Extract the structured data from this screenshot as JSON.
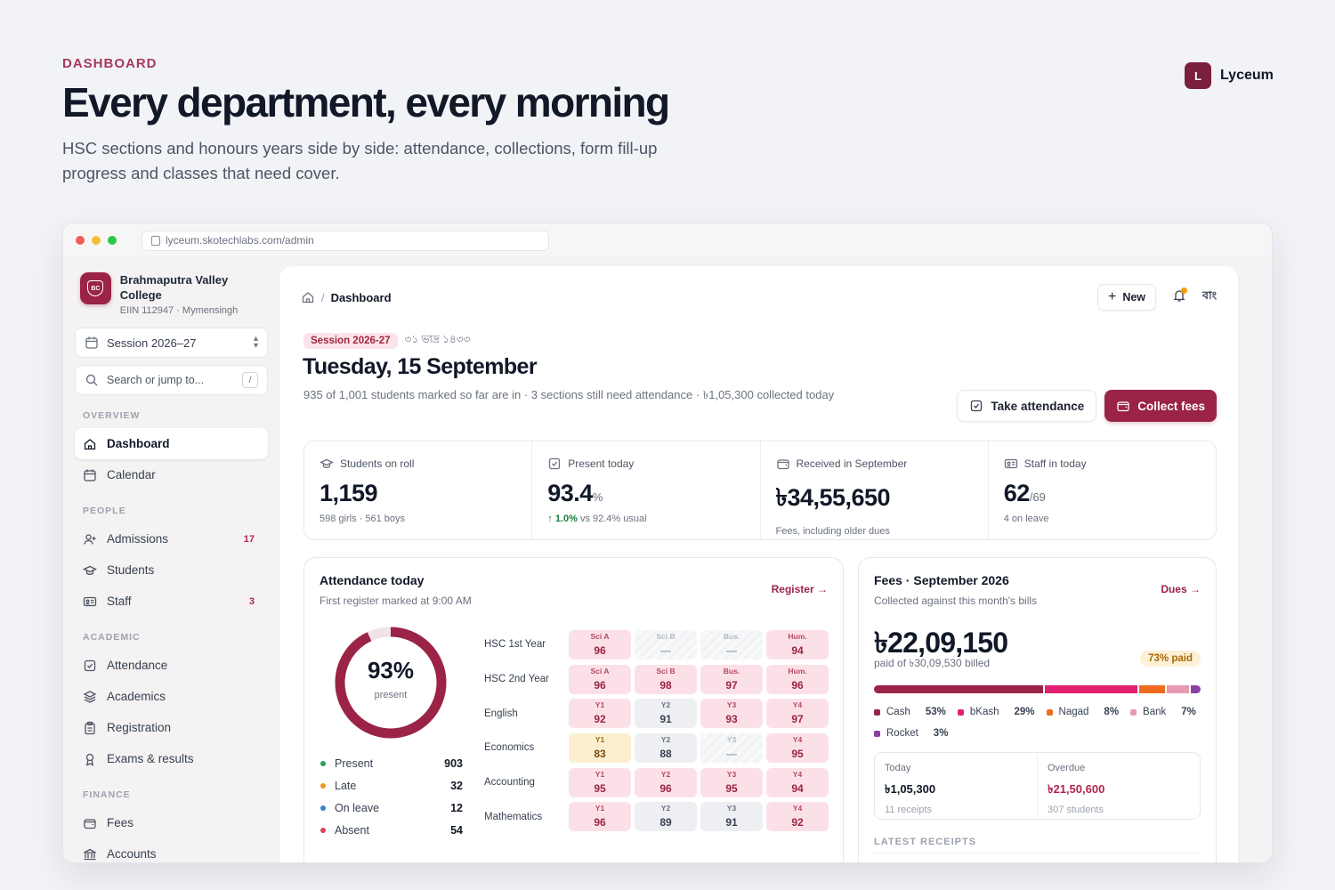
{
  "hero": {
    "kicker": "DASHBOARD",
    "title": "Every department, every morning",
    "subtitle": "HSC sections and honours years side by side: attendance, collections, form fill-up progress and classes that need cover."
  },
  "brand": {
    "logo_letter": "L",
    "name": "Lyceum"
  },
  "browser": {
    "url": "lyceum.skotechlabs.com/admin"
  },
  "sidebar": {
    "college_name": "Brahmaputra Valley College",
    "college_crest": "BC",
    "college_meta": "EIIN 112947 · Mymensingh",
    "session": "Session 2026–27",
    "search_placeholder": "Search or jump to...",
    "search_shortcut": "/",
    "sections": [
      {
        "label": "OVERVIEW",
        "items": [
          {
            "label": "Dashboard",
            "icon": "home-icon",
            "active": true
          },
          {
            "label": "Calendar",
            "icon": "calendar-icon"
          }
        ]
      },
      {
        "label": "PEOPLE",
        "items": [
          {
            "label": "Admissions",
            "icon": "user-plus-icon",
            "badge": "17"
          },
          {
            "label": "Students",
            "icon": "graduation-cap-icon"
          },
          {
            "label": "Staff",
            "icon": "id-card-icon",
            "badge": "3"
          }
        ]
      },
      {
        "label": "ACADEMIC",
        "items": [
          {
            "label": "Attendance",
            "icon": "checkbox-icon"
          },
          {
            "label": "Academics",
            "icon": "layers-icon"
          },
          {
            "label": "Registration",
            "icon": "clipboard-icon"
          },
          {
            "label": "Exams & results",
            "icon": "award-icon"
          }
        ]
      },
      {
        "label": "FINANCE",
        "items": [
          {
            "label": "Fees",
            "icon": "wallet-icon"
          },
          {
            "label": "Accounts",
            "icon": "bank-icon"
          }
        ]
      }
    ]
  },
  "topbar": {
    "breadcrumb": "Dashboard",
    "new_label": "New",
    "lang_label": "বাং"
  },
  "header": {
    "session_pill": "Session 2026-27",
    "bangla_date": "৩১ ভাদ্র ১৪৩৩",
    "title": "Tuesday, 15 September",
    "subtitle": "935 of 1,001 students marked so far are in · 3 sections still need attendance · ৳1,05,300 collected today",
    "take_attendance": "Take attendance",
    "collect_fees": "Collect fees"
  },
  "stats": [
    {
      "label": "Students on roll",
      "icon": "graduation-cap-icon",
      "value": "1,159",
      "suffix": "",
      "note": "598 girls · 561 boys"
    },
    {
      "label": "Present today",
      "icon": "checkbox-icon",
      "value": "93.4",
      "suffix": "%",
      "note_up": "1.0%",
      "note": "vs 92.4% usual"
    },
    {
      "label": "Received in September",
      "icon": "wallet-icon",
      "value": "৳34,55,650",
      "suffix": "",
      "note": "Fees, including older dues"
    },
    {
      "label": "Staff in today",
      "icon": "id-card-icon",
      "value": "62",
      "suffix": "/69",
      "note": "4 on leave"
    }
  ],
  "attendance": {
    "title": "Attendance today",
    "subtitle": "First register marked at 9:00 AM",
    "link": "Register",
    "ring_pct": "93%",
    "ring_value": 0.93,
    "ring_label": "present",
    "legend": [
      {
        "label": "Present",
        "value": "903",
        "color": "#2e9b57"
      },
      {
        "label": "Late",
        "value": "32",
        "color": "#e8961e"
      },
      {
        "label": "On leave",
        "value": "12",
        "color": "#3b7dd8"
      },
      {
        "label": "Absent",
        "value": "54",
        "color": "#d94156"
      }
    ],
    "rows": [
      {
        "name": "HSC 1st Year",
        "cells": [
          {
            "label": "Sci A",
            "value": "96",
            "tone": "red"
          },
          {
            "label": "Sci B",
            "value": "—",
            "tone": "na"
          },
          {
            "label": "Bus.",
            "value": "—",
            "tone": "na"
          },
          {
            "label": "Hum.",
            "value": "94",
            "tone": "red"
          }
        ]
      },
      {
        "name": "HSC 2nd Year",
        "cells": [
          {
            "label": "Sci A",
            "value": "96",
            "tone": "red"
          },
          {
            "label": "Sci B",
            "value": "98",
            "tone": "red"
          },
          {
            "label": "Bus.",
            "value": "97",
            "tone": "red"
          },
          {
            "label": "Hum.",
            "value": "96",
            "tone": "red"
          }
        ]
      },
      {
        "name": "English",
        "cells": [
          {
            "label": "Y1",
            "value": "92",
            "tone": "red"
          },
          {
            "label": "Y2",
            "value": "91",
            "tone": "grey"
          },
          {
            "label": "Y3",
            "value": "93",
            "tone": "red"
          },
          {
            "label": "Y4",
            "value": "97",
            "tone": "red"
          }
        ]
      },
      {
        "name": "Economics",
        "cells": [
          {
            "label": "Y1",
            "value": "83",
            "tone": "yel"
          },
          {
            "label": "Y2",
            "value": "88",
            "tone": "grey"
          },
          {
            "label": "Y3",
            "value": "—",
            "tone": "na"
          },
          {
            "label": "Y4",
            "value": "95",
            "tone": "red"
          }
        ]
      },
      {
        "name": "Accounting",
        "cells": [
          {
            "label": "Y1",
            "value": "95",
            "tone": "red"
          },
          {
            "label": "Y2",
            "value": "96",
            "tone": "red"
          },
          {
            "label": "Y3",
            "value": "95",
            "tone": "red"
          },
          {
            "label": "Y4",
            "value": "94",
            "tone": "red"
          }
        ]
      },
      {
        "name": "Mathematics",
        "cells": [
          {
            "label": "Y1",
            "value": "96",
            "tone": "red"
          },
          {
            "label": "Y2",
            "value": "89",
            "tone": "grey"
          },
          {
            "label": "Y3",
            "value": "91",
            "tone": "grey"
          },
          {
            "label": "Y4",
            "value": "92",
            "tone": "red"
          }
        ]
      }
    ]
  },
  "fees": {
    "title": "Fees · September 2026",
    "subtitle": "Collected against this month's bills",
    "link": "Dues",
    "collected": "৳22,09,150",
    "billed": "paid of ৳30,09,530 billed",
    "paid_pill": "73% paid",
    "paid_fraction": 0.73,
    "methods": [
      {
        "label": "Cash",
        "pct": "53%",
        "share": 53,
        "color": "#9b2346"
      },
      {
        "label": "bKash",
        "pct": "29%",
        "share": 29,
        "color": "#e2206f"
      },
      {
        "label": "Nagad",
        "pct": "8%",
        "share": 8,
        "color": "#ee6b1f"
      },
      {
        "label": "Bank",
        "pct": "7%",
        "share": 7,
        "color": "#e79bb3"
      },
      {
        "label": "Rocket",
        "pct": "3%",
        "share": 3,
        "color": "#8b3fa3"
      }
    ],
    "today_label": "Today",
    "today_value": "৳1,05,300",
    "today_note": "11 receipts",
    "overdue_label": "Overdue",
    "overdue_value": "৳21,50,600",
    "overdue_note": "307 students",
    "latest_label": "LATEST RECEIPTS"
  },
  "colors": {
    "accent": "#9b2346",
    "brand": "#7a1f3d"
  }
}
